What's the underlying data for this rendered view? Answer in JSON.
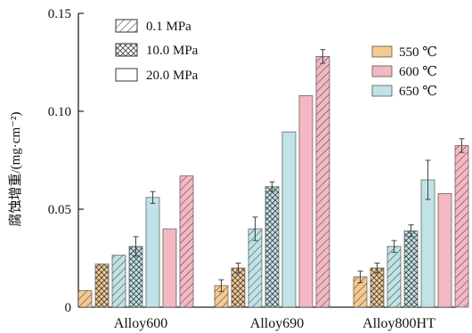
{
  "chart_data": {
    "type": "bar",
    "ylabel": "腐蚀增重/(mg·cm⁻²)",
    "xlabel": "",
    "ylim": [
      0,
      0.15
    ],
    "yticks": [
      0,
      0.05,
      0.1,
      0.15
    ],
    "ytick_labels": [
      "0",
      "0.05",
      "0.10",
      "0.15"
    ],
    "categories": [
      "Alloy600",
      "Alloy690",
      "Alloy800HT"
    ],
    "pressure_legend": [
      "0.1 MPa",
      "10.0 MPa",
      "20.0 MPa"
    ],
    "temperature_legend": [
      "550 ℃",
      "600 ℃",
      "650 ℃"
    ],
    "colors": {
      "550": "#f6c98f",
      "600": "#f5b8c3",
      "650": "#bfe3e6",
      "outline": "#333333",
      "error": "#444444"
    },
    "series": [
      {
        "name": "550 ℃",
        "pressure": "0.1 MPa",
        "values": [
          0.0085,
          0.011,
          0.0155
        ],
        "errors": [
          null,
          0.003,
          0.003
        ]
      },
      {
        "name": "550 ℃",
        "pressure": "10.0 MPa",
        "values": [
          0.022,
          0.02,
          0.02
        ],
        "errors": [
          null,
          0.0025,
          0.0025
        ]
      },
      {
        "name": "650 ℃",
        "pressure": "0.1 MPa",
        "values": [
          0.0265,
          0.04,
          0.031
        ],
        "errors": [
          null,
          0.006,
          0.003
        ]
      },
      {
        "name": "650 ℃",
        "pressure": "10.0 MPa",
        "values": [
          0.031,
          0.0615,
          0.039
        ],
        "errors": [
          0.005,
          0.0025,
          0.003
        ]
      },
      {
        "name": "650 ℃",
        "pressure": "20.0 MPa",
        "values": [
          0.056,
          0.0895,
          0.065
        ],
        "errors": [
          0.003,
          null,
          0.01
        ]
      },
      {
        "name": "600 ℃",
        "pressure": "20.0 MPa",
        "values": [
          0.04,
          0.108,
          0.058
        ],
        "errors": [
          null,
          null,
          null
        ]
      },
      {
        "name": "600 ℃",
        "pressure": "0.1 MPa",
        "values": [
          0.067,
          0.128,
          0.0825
        ],
        "errors": [
          null,
          0.0035,
          0.0035
        ]
      }
    ]
  }
}
